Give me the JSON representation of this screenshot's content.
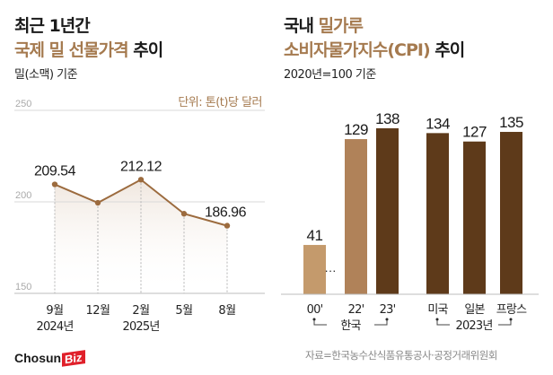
{
  "logo": {
    "part1": "Chosun",
    "part2": "Biz"
  },
  "source": "자료=한국농수산식품유통공사·공정거래위원회",
  "colors": {
    "accent": "#a57a4f",
    "line": "#9c6b3e",
    "bar_light": "#c49a6c",
    "bar_mid": "#b08259",
    "bar_dark": "#5e3a1a",
    "grid": "#cccccc",
    "logo_red": "#e0202a"
  },
  "chart_data": [
    {
      "type": "line",
      "title_line1": "최근 1년간",
      "title_line2_accent": "국제 밀 선물가격",
      "title_line2_rest": " 추이",
      "subtitle": "밀(소맥) 기준",
      "unit": "단위: 톤(t)당 달러",
      "ylim": [
        150,
        250
      ],
      "yticks": [
        "250",
        "200",
        "150"
      ],
      "ytick_values": [
        250,
        200,
        150
      ],
      "categories": [
        "9월",
        "12월",
        "2월",
        "5월",
        "8월"
      ],
      "category_sub": [
        "2024년",
        "",
        "2025년",
        "",
        ""
      ],
      "values": [
        209.54,
        199.5,
        212.12,
        193.5,
        186.96
      ],
      "data_labels": [
        "209.54",
        "",
        "212.12",
        "",
        "186.96"
      ],
      "grid": true
    },
    {
      "type": "bar",
      "title_line1_plain": "국내 ",
      "title_line1_accent": "밀가루",
      "title_line2_accent": "소비자물가지수(CPI)",
      "title_line2_rest": " 추이",
      "subtitle": "2020년=100 기준",
      "categories": [
        "00'",
        "22'",
        "23'",
        "미국",
        "일본",
        "프랑스"
      ],
      "values": [
        41,
        129,
        138,
        134,
        127,
        135
      ],
      "data_labels": [
        "41",
        "129",
        "138",
        "134",
        "127",
        "135"
      ],
      "bar_colors": [
        "#c49a6c",
        "#b08259",
        "#5e3a1a",
        "#5e3a1a",
        "#5e3a1a",
        "#5e3a1a"
      ],
      "group_labels": [
        "한국",
        "2023년"
      ],
      "break_marker": "···",
      "ylim": [
        0,
        140
      ]
    }
  ]
}
